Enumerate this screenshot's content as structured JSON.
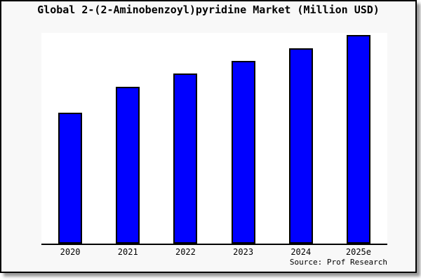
{
  "title": "Global 2-(2-Aminobenzoyl)pyridine Market (Million USD)",
  "source_credit": "Source: Prof Research",
  "colors": {
    "bar_fill": "#0000ff",
    "bar_border": "#000000",
    "axis": "#000000",
    "plot_background": "#ffffff",
    "window_background": "#f8f8f8",
    "text": "#000000"
  },
  "chart_data": {
    "type": "bar",
    "title": "Global 2-(2-Aminobenzoyl)pyridine Market (Million USD)",
    "categories": [
      "2020",
      "2021",
      "2022",
      "2023",
      "2024",
      "2025e"
    ],
    "values": [
      62.7,
      75.2,
      81.5,
      87.7,
      93.5,
      100.0
    ],
    "value_note": "no y-axis labels shown; values are relative bar heights with 2025e = 100",
    "xlabel": "",
    "ylabel": "",
    "ylim": [
      0,
      101
    ],
    "grid": false,
    "legend": false,
    "source": "Source: Prof Research"
  }
}
